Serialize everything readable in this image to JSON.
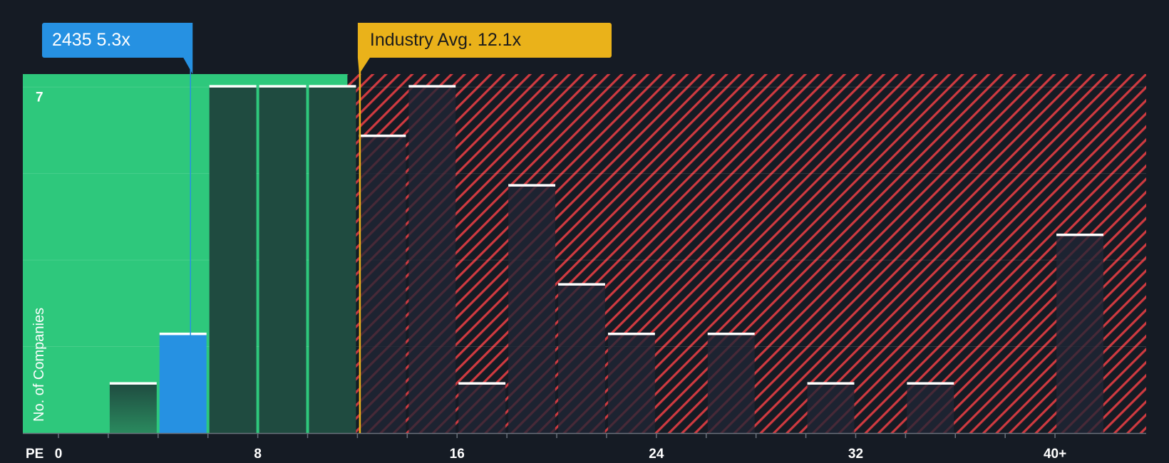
{
  "chart_data": {
    "type": "bar",
    "title": "",
    "xlabel": "PE",
    "ylabel": "No. of Companies",
    "x_ticks": [
      "0",
      "8",
      "16",
      "24",
      "32",
      "40+"
    ],
    "x_tick_values": [
      0,
      8,
      16,
      24,
      32,
      40
    ],
    "xlim": [
      0,
      41.6
    ],
    "ylim": [
      0,
      7.25
    ],
    "y_tick_labels": [
      "7"
    ],
    "y_tick_values": [
      7
    ],
    "bin_width": 2,
    "bins": [
      {
        "x0": 2,
        "value": 1,
        "zone": "fair"
      },
      {
        "x0": 4,
        "value": 2,
        "zone": "company"
      },
      {
        "x0": 6,
        "value": 7,
        "zone": "fair"
      },
      {
        "x0": 8,
        "value": 7,
        "zone": "fair"
      },
      {
        "x0": 10,
        "value": 7,
        "zone": "fair"
      },
      {
        "x0": 12,
        "value": 6,
        "zone": "expensive"
      },
      {
        "x0": 14,
        "value": 7,
        "zone": "expensive"
      },
      {
        "x0": 16,
        "value": 1,
        "zone": "expensive"
      },
      {
        "x0": 18,
        "value": 5,
        "zone": "expensive"
      },
      {
        "x0": 20,
        "value": 3,
        "zone": "expensive"
      },
      {
        "x0": 22,
        "value": 2,
        "zone": "expensive"
      },
      {
        "x0": 26,
        "value": 2,
        "zone": "expensive"
      },
      {
        "x0": 30,
        "value": 1,
        "zone": "expensive"
      },
      {
        "x0": 34,
        "value": 1,
        "zone": "expensive"
      },
      {
        "x0": 40,
        "value": 4,
        "zone": "expensive"
      }
    ],
    "company": {
      "ticker": "2435",
      "value": 5.3,
      "label": "2435 5.3x"
    },
    "industry_avg": {
      "value": 12.1,
      "label": "Industry Avg. 12.1x"
    },
    "fair_zone_end": 11.6,
    "colors": {
      "background": "#151b24",
      "fair_zone": "#2ec87c",
      "fair_bar": "#1f4b40",
      "company": "#2691e2",
      "industry": "#eab21a",
      "expensive_stripe": "#cf3a40",
      "expensive_bar": "#202534",
      "bar_cap": "#ffffff",
      "text": "#ffffff"
    }
  }
}
